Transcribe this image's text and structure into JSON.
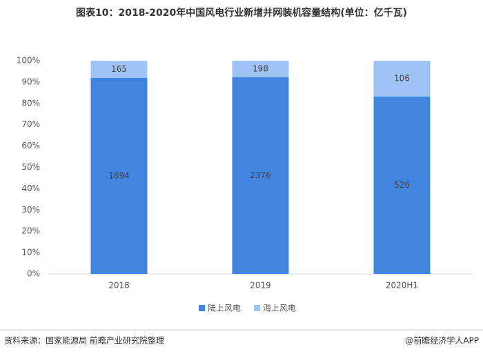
{
  "chart_data": {
    "type": "percent_stacked_bar",
    "title": "图表10：2018-2020年中国风电行业新增并网装机容量结构(单位：亿千瓦)",
    "categories": [
      "2018",
      "2019",
      "2020H1"
    ],
    "series": [
      {
        "name": "陆上风电",
        "color": "#4285e0",
        "values": [
          1894,
          2376,
          526
        ]
      },
      {
        "name": "海上风电",
        "color": "#9ec3f4",
        "values": [
          165,
          198,
          106
        ]
      }
    ],
    "ylim": [
      0,
      100
    ],
    "yticks": [
      {
        "value": 0,
        "label": "0%"
      },
      {
        "value": 10,
        "label": "10%"
      },
      {
        "value": 20,
        "label": "20%"
      },
      {
        "value": 30,
        "label": "30%"
      },
      {
        "value": 40,
        "label": "40%"
      },
      {
        "value": 50,
        "label": "50%"
      },
      {
        "value": 60,
        "label": "60%"
      },
      {
        "value": 70,
        "label": "70%"
      },
      {
        "value": 80,
        "label": "80%"
      },
      {
        "value": 90,
        "label": "90%"
      },
      {
        "value": 100,
        "label": "100%"
      }
    ],
    "legend": "bottom",
    "source": "资料来源：国家能源局 前瞻产业研究院整理",
    "credit": "@前瞻经济学人APP"
  }
}
